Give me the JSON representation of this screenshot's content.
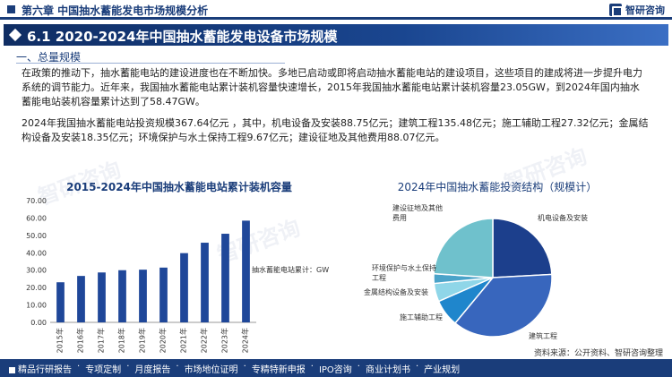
{
  "header": {
    "chapter": "第六章 中国抽水蓄能发电市场规模分析",
    "brand": "智研咨询"
  },
  "title": "6.1 2020-2024年中国抽水蓄能发电设备市场规模",
  "section": "一、总量规模",
  "paragraphs": [
    "在政策的推动下，抽水蓄能电站的建设进度也在不断加快。多地已启动或即将启动抽水蓄能电站的建设项目，这些项目的建成将进一步提升电力系统的调节能力。近年来，我国抽水蓄能电站累计装机容量快速增长，2015年我国抽水蓄能电站累计装机容量23.05GW，到2024年国内抽水蓄能电站装机容量累计达到了58.47GW。",
    "2024年我国抽水蓄能电站投资规模367.64亿元 ，其中，机电设备及安装88.75亿元；建筑工程135.48亿元；施工辅助工程27.32亿元；金属结构设备及安装18.35亿元；环境保护与水土保持工程9.67亿元；建设征地及其他费用88.07亿元。"
  ],
  "watermark": "智研咨询",
  "colors": {
    "primary": "#1a3d7a",
    "bar": "#1f4799"
  },
  "chart_data": [
    {
      "type": "bar",
      "title": "2015-2024年中国抽水蓄能电站累计装机容量",
      "categories": [
        "2015年",
        "2016年",
        "2017年",
        "2018年",
        "2019年",
        "2020年",
        "2021年",
        "2022年",
        "2023年",
        "2024年"
      ],
      "series": [
        {
          "name": "抽水蓄能电站累计：GW",
          "values": [
            23.05,
            26.69,
            28.69,
            29.99,
            30.29,
            31.49,
            39.8,
            45.79,
            50.94,
            58.47
          ]
        }
      ],
      "ylim": [
        0,
        70
      ],
      "yticks": [
        "0.00",
        "10.00",
        "20.00",
        "30.00",
        "40.00",
        "50.00",
        "60.00",
        "70.00"
      ],
      "grid": false,
      "legend": "right"
    },
    {
      "type": "pie",
      "title": "2024年中国抽水蓄能投资结构（规模计）",
      "slices": [
        {
          "label": "机电设备及安装",
          "value": 88.75,
          "color": "#1c3f8c"
        },
        {
          "label": "建筑工程",
          "value": 135.48,
          "color": "#3866bd"
        },
        {
          "label": "施工辅助工程",
          "value": 27.32,
          "color": "#1f86cc"
        },
        {
          "label": "金属结构设备及安装",
          "value": 18.35,
          "color": "#8fd6e8"
        },
        {
          "label": "环境保护与水土保持工程",
          "value": 9.67,
          "color": "#4aa3c9"
        },
        {
          "label": "建设征地及其他费用",
          "value": 88.07,
          "color": "#6fc1cc"
        }
      ]
    }
  ],
  "footer": {
    "items": [
      "精品行研报告",
      "专项定制",
      "月度报告",
      "市场地位证明",
      "专精特新申报",
      "IPO咨询",
      "商业计划书",
      "产业规划"
    ],
    "separator": "·"
  },
  "source": "资料来源：公开资料、智研咨询整理"
}
